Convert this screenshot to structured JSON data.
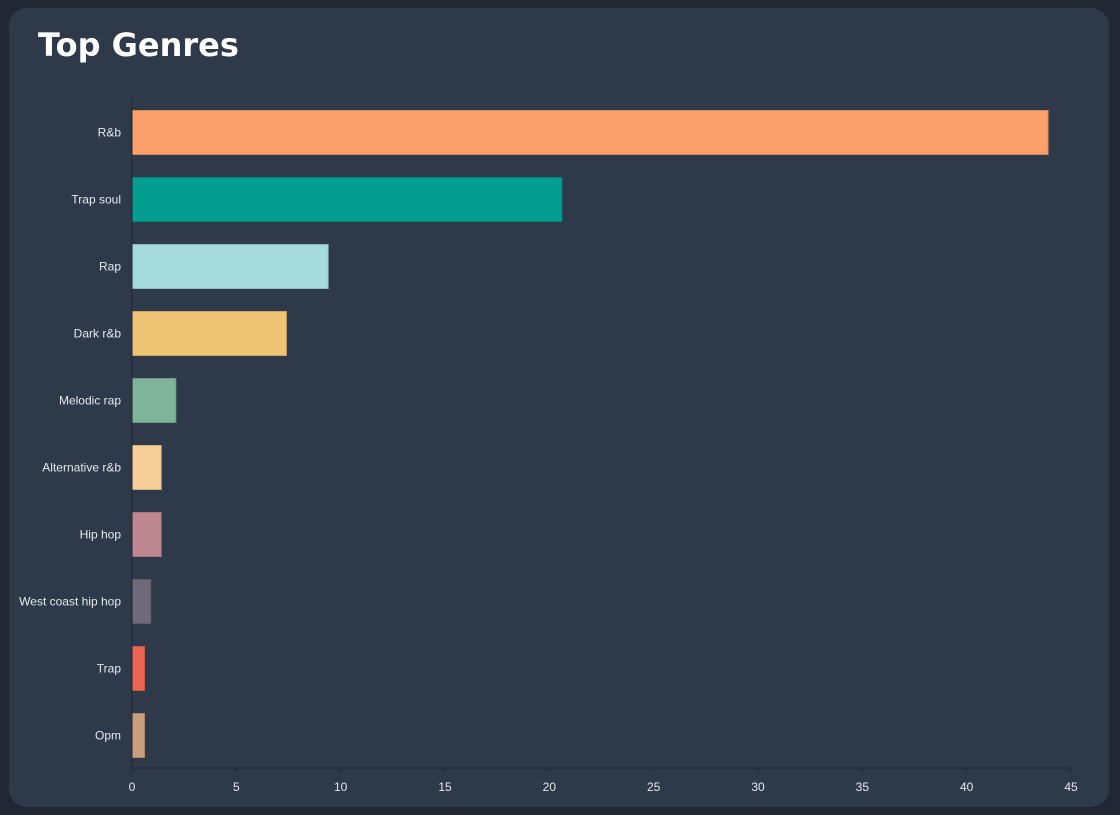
{
  "card": {
    "title": "Top Genres"
  },
  "chart_data": {
    "type": "bar",
    "orientation": "horizontal",
    "title": "Top Genres",
    "xlabel": "",
    "ylabel": "",
    "xlim": [
      0,
      45
    ],
    "x_ticks": [
      0,
      5,
      10,
      15,
      20,
      25,
      30,
      35,
      40,
      45
    ],
    "grid": false,
    "categories": [
      "R&b",
      "Trap soul",
      "Rap",
      "Dark r&b",
      "Melodic rap",
      "Alternative r&b",
      "Hip hop",
      "West coast hip hop",
      "Trap",
      "Opm"
    ],
    "values": [
      43.9,
      20.6,
      9.4,
      7.4,
      2.1,
      1.4,
      1.4,
      0.9,
      0.6,
      0.6
    ],
    "colors": [
      "#fca06b",
      "#049e91",
      "#a6dbdc",
      "#efc474",
      "#7fb49b",
      "#f6ce97",
      "#be8891",
      "#6f6a79",
      "#eb6754",
      "#c9a07d"
    ]
  }
}
